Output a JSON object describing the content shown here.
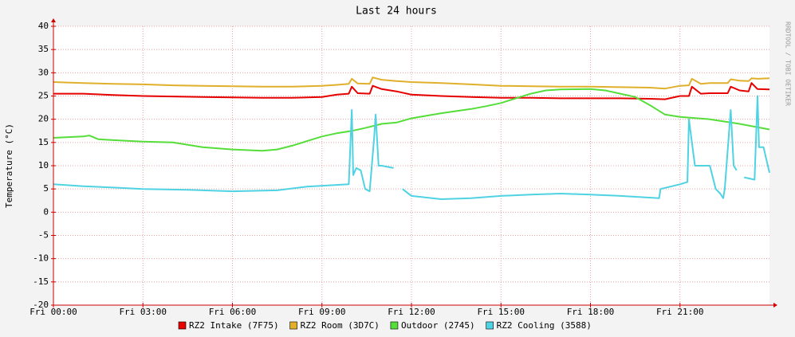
{
  "chart_data": {
    "type": "line",
    "title": "Last 24 hours",
    "y_label": "Temperature (°C)",
    "watermark": "RRDTOOL / TOBI OETIKER",
    "xlim": [
      0,
      24
    ],
    "ylim": [
      -20,
      40
    ],
    "xticks": [
      {
        "value": 0,
        "label": "Fri 00:00"
      },
      {
        "value": 3,
        "label": "Fri 03:00"
      },
      {
        "value": 6,
        "label": "Fri 06:00"
      },
      {
        "value": 9,
        "label": "Fri 09:00"
      },
      {
        "value": 12,
        "label": "Fri 12:00"
      },
      {
        "value": 15,
        "label": "Fri 15:00"
      },
      {
        "value": 18,
        "label": "Fri 18:00"
      },
      {
        "value": 21,
        "label": "Fri 21:00"
      }
    ],
    "yticks": [
      -20,
      -15,
      -10,
      -5,
      0,
      5,
      10,
      15,
      20,
      25,
      30,
      35,
      40
    ],
    "grid": true,
    "series": [
      {
        "name": "RZ2 Intake (7F75)",
        "color": "#e60000",
        "x": [
          0,
          1,
          2,
          3,
          4,
          5,
          6,
          7,
          8,
          9,
          9.5,
          9.9,
          10.0,
          10.2,
          10.6,
          10.7,
          11,
          11.5,
          12,
          13,
          14,
          15,
          16,
          17,
          18,
          19,
          20,
          20.5,
          21,
          21.3,
          21.4,
          21.7,
          22,
          22.6,
          22.7,
          23,
          23.3,
          23.4,
          23.6,
          24
        ],
        "values": [
          25.5,
          25.5,
          25.2,
          25,
          24.9,
          24.8,
          24.7,
          24.6,
          24.6,
          24.8,
          25.3,
          25.5,
          27,
          25.6,
          25.5,
          27.2,
          26.5,
          26,
          25.3,
          25,
          24.8,
          24.6,
          24.6,
          24.5,
          24.5,
          24.5,
          24.4,
          24.3,
          25,
          25,
          27,
          25.5,
          25.6,
          25.6,
          27,
          26.2,
          26,
          27.8,
          26.5,
          26.4
        ]
      },
      {
        "name": "RZ2 Room (3D7C)",
        "color": "#e0b02c",
        "x": [
          0,
          1,
          2,
          3,
          4,
          5,
          6,
          7,
          8,
          9,
          9.5,
          9.9,
          10.0,
          10.2,
          10.6,
          10.7,
          11,
          11.5,
          12,
          13,
          14,
          15,
          16,
          17,
          18,
          19,
          20,
          20.5,
          21,
          21.3,
          21.4,
          21.7,
          22,
          22.6,
          22.7,
          23,
          23.3,
          23.4,
          23.6,
          24
        ],
        "values": [
          28,
          27.8,
          27.6,
          27.5,
          27.3,
          27.2,
          27.1,
          27,
          27,
          27.2,
          27.4,
          27.6,
          28.7,
          27.7,
          27.6,
          29,
          28.5,
          28.2,
          28,
          27.8,
          27.5,
          27.2,
          27.1,
          27,
          27,
          26.9,
          26.8,
          26.6,
          27.2,
          27.3,
          28.7,
          27.6,
          27.8,
          27.8,
          28.6,
          28.3,
          28.2,
          28.8,
          28.7,
          28.8
        ]
      },
      {
        "name": "Outdoor (2745)",
        "color": "#55dd3a",
        "x": [
          0,
          1,
          1.2,
          1.5,
          2,
          3,
          4,
          5,
          6,
          7,
          7.5,
          8,
          8.5,
          9,
          9.5,
          10,
          10.5,
          11,
          11.5,
          12,
          13,
          14,
          14.5,
          15,
          15.5,
          16,
          16.5,
          17,
          18,
          18.5,
          19,
          19.5,
          20,
          20.5,
          21,
          22,
          23,
          24
        ],
        "values": [
          16,
          16.3,
          16.5,
          15.7,
          15.5,
          15.2,
          15,
          14,
          13.5,
          13.2,
          13.5,
          14.3,
          15.3,
          16.3,
          17,
          17.5,
          18.2,
          19,
          19.3,
          20.2,
          21.3,
          22.2,
          22.8,
          23.5,
          24.5,
          25.5,
          26.2,
          26.4,
          26.5,
          26.2,
          25.5,
          24.8,
          23,
          21,
          20.5,
          20,
          19,
          17.8
        ]
      },
      {
        "name": "RZ2 Cooling (3588)",
        "color": "#4fd3e3",
        "x": [
          0,
          1,
          2,
          3,
          4.5,
          6,
          7.5,
          8.5,
          9.9,
          10.0,
          10.05,
          10.15,
          10.3,
          10.45,
          10.6,
          10.75,
          10.8,
          10.9,
          11.0,
          11.4,
          11.55,
          11.7,
          12,
          13,
          14,
          15,
          16,
          17,
          18,
          19,
          20.3,
          20.35,
          21,
          21.25,
          21.3,
          21.5,
          22,
          22.2,
          22.35,
          22.45,
          22.5,
          22.7,
          22.8,
          22.9,
          23.05,
          23.15,
          23.5,
          23.6,
          23.65,
          23.8,
          24
        ],
        "values": [
          6,
          5.6,
          5.3,
          5,
          4.8,
          4.5,
          4.7,
          5.5,
          6,
          22,
          8,
          9.5,
          9,
          5,
          4.5,
          16,
          21,
          10,
          10,
          9.5,
          null,
          5,
          3.5,
          2.8,
          3,
          3.5,
          3.8,
          4,
          3.8,
          3.5,
          3,
          5,
          6,
          6.5,
          20,
          10,
          10,
          5,
          4,
          3,
          5,
          22,
          10,
          9,
          null,
          7.5,
          7,
          25,
          14,
          14,
          8.5
        ]
      }
    ]
  }
}
